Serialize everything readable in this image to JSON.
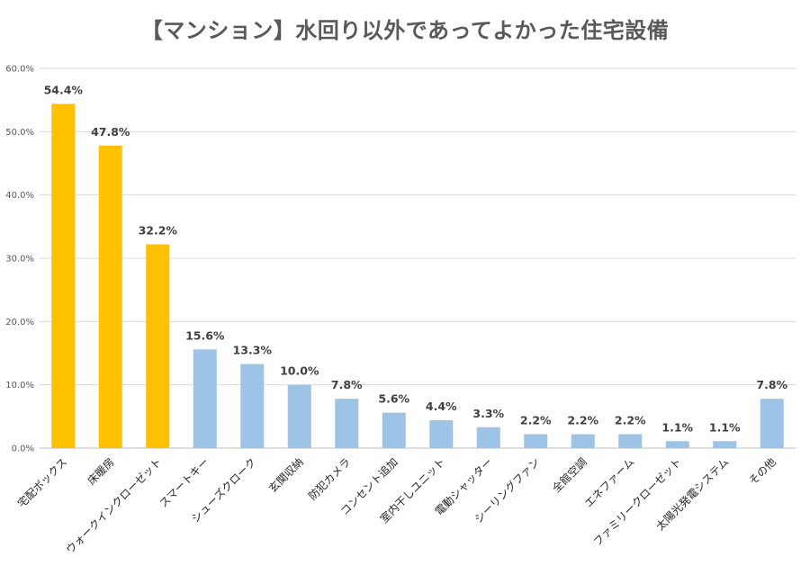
{
  "chart_data": {
    "type": "bar",
    "title": "【マンション】水回り以外であってよかった住宅設備",
    "xlabel": "",
    "ylabel": "",
    "ylim": [
      0,
      60
    ],
    "yticks": [
      "0.0%",
      "10.0%",
      "20.0%",
      "30.0%",
      "40.0%",
      "50.0%",
      "60.0%"
    ],
    "grid": true,
    "categories": [
      "宅配ボックス",
      "床暖房",
      "ウォークインクローゼット",
      "スマートキー",
      "シューズクローク",
      "玄関収納",
      "防犯カメラ",
      "コンセント追加",
      "室内干しユニット",
      "電動シャッター",
      "シーリングファン",
      "全館空調",
      "エネファーム",
      "ファミリークローゼット",
      "太陽光発電システム",
      "その他"
    ],
    "values": [
      54.4,
      47.8,
      32.2,
      15.6,
      13.3,
      10.0,
      7.8,
      5.6,
      4.4,
      3.3,
      2.2,
      2.2,
      2.2,
      1.1,
      1.1,
      7.8
    ],
    "data_labels": [
      "54.4%",
      "47.8%",
      "32.2%",
      "15.6%",
      "13.3%",
      "10.0%",
      "7.8%",
      "5.6%",
      "4.4%",
      "3.3%",
      "2.2%",
      "2.2%",
      "2.2%",
      "1.1%",
      "1.1%",
      "7.8%"
    ],
    "colors": {
      "highlight": "#FFC000",
      "normal": "#9DC3E6"
    },
    "highlight_count": 3
  }
}
